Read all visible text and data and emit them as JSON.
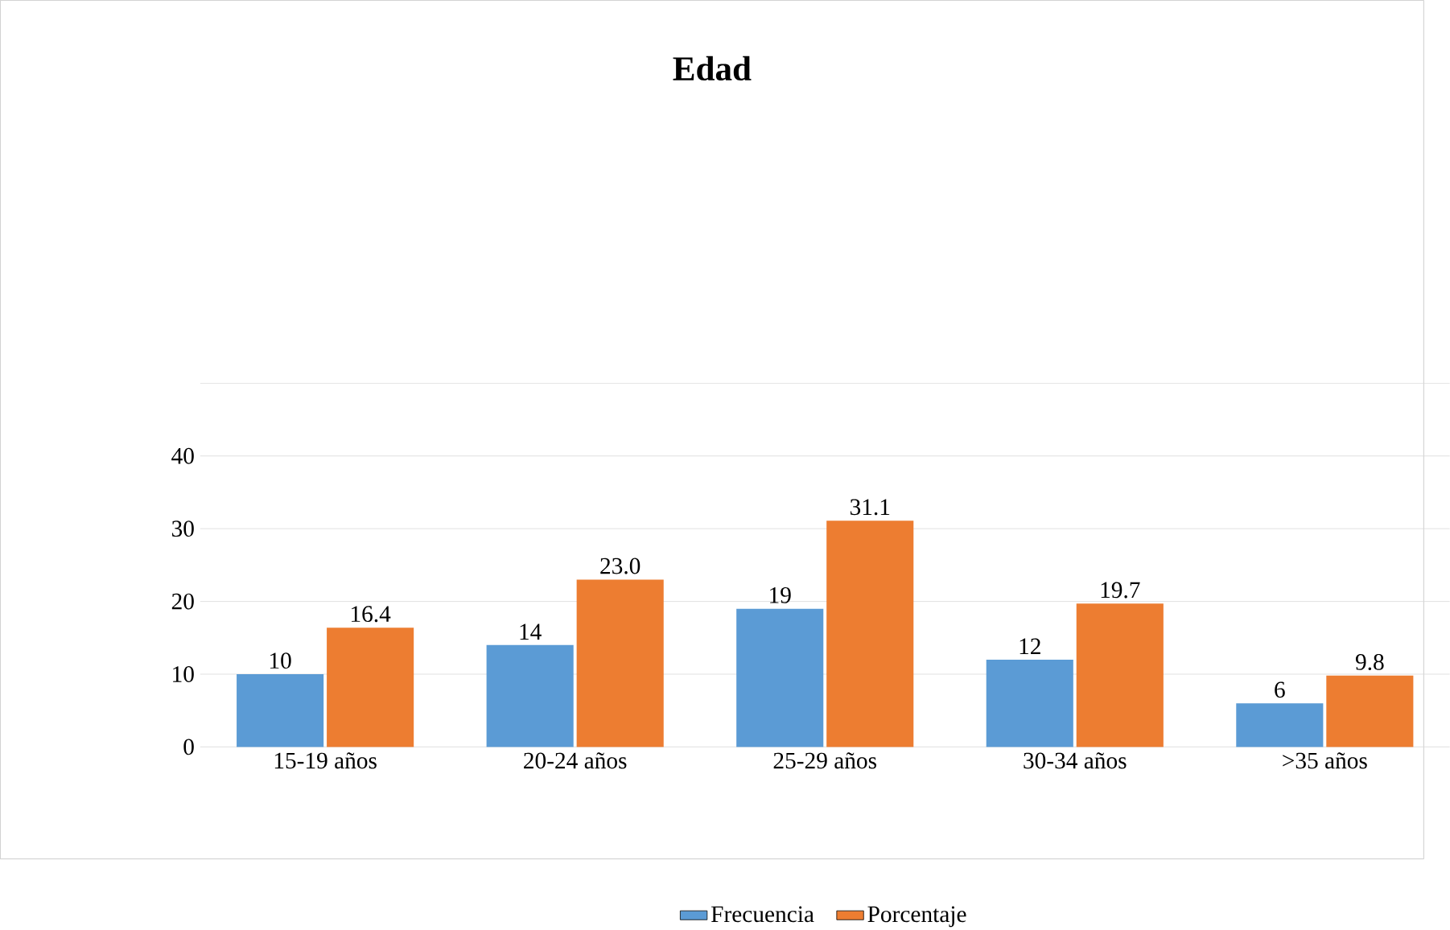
{
  "chart_data": {
    "type": "bar",
    "title": "Edad",
    "categories": [
      "15-19 años",
      "20-24 años",
      "25-29 años",
      "30-34 años",
      ">35 años"
    ],
    "series": [
      {
        "name": "Frecuencia",
        "color": "#5b9bd5",
        "values": [
          10,
          14,
          19,
          12,
          6
        ]
      },
      {
        "name": "Porcentaje",
        "color": "#ed7d31",
        "values": [
          16.4,
          23.0,
          31.1,
          19.7,
          9.8
        ]
      }
    ],
    "value_labels": [
      [
        "10",
        "14",
        "19",
        "12",
        "6"
      ],
      [
        "16.4",
        "23.0",
        "31.1",
        "19.7",
        "9.8"
      ]
    ],
    "ylim": [
      0,
      50
    ],
    "yticks": [
      0,
      10,
      20,
      30,
      40,
      {
        "value": 50,
        "label": null
      }
    ],
    "grid": "y",
    "legend": "bottom"
  }
}
